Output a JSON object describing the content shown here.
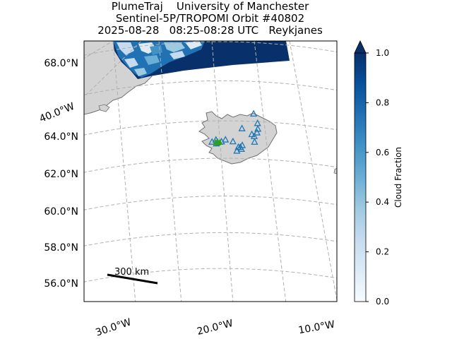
{
  "title_lines": [
    "PlumeTraj    University of Manchester",
    "Sentinel-5P/TROPOMI Orbit #40802",
    "2025-08-28   08:25-08:28 UTC   Reykjanes"
  ],
  "chart_data": {
    "type": "map",
    "projection": "stereographic",
    "lat_ticks": [
      "68.0°N",
      "64.0°N",
      "62.0°N",
      "60.0°N",
      "58.0°N",
      "56.0°N"
    ],
    "lon_ticks_bottom": [
      "30.0°W",
      "20.0°W",
      "10.0°W"
    ],
    "lon_tick_left": "40.0°W",
    "scale_bar": {
      "label": "300 km",
      "length_km": 300
    },
    "colorbar": {
      "label": "Cloud Fraction",
      "range": [
        0.0,
        1.0
      ],
      "ticks": [
        "0.0",
        "0.2",
        "0.4",
        "0.6",
        "0.8",
        "1.0"
      ],
      "extend": "max",
      "colormap": "Blues"
    },
    "markers": {
      "volcano_triangles": {
        "color": "#1f77b4",
        "shape": "open triangle",
        "locations": [
          {
            "lat": 65.4,
            "lon": -17.0
          },
          {
            "lat": 64.3,
            "lon": -17.1
          },
          {
            "lat": 64.2,
            "lon": -16.7
          },
          {
            "lat": 64.4,
            "lon": -16.3
          },
          {
            "lat": 64.6,
            "lon": -16.2
          },
          {
            "lat": 64.9,
            "lon": -16.3
          },
          {
            "lat": 63.9,
            "lon": -16.6
          },
          {
            "lat": 63.6,
            "lon": -19.1
          },
          {
            "lat": 63.6,
            "lon": -18.8
          },
          {
            "lat": 63.7,
            "lon": -18.5
          },
          {
            "lat": 63.4,
            "lon": -19.3
          },
          {
            "lat": 63.5,
            "lon": -18.6
          },
          {
            "lat": 64.0,
            "lon": -21.2
          },
          {
            "lat": 64.0,
            "lon": -22.7
          },
          {
            "lat": 63.9,
            "lon": -20.0
          },
          {
            "lat": 63.9,
            "lon": -21.8
          },
          {
            "lat": 63.9,
            "lon": -23.3
          },
          {
            "lat": 63.8,
            "lon": -22.6
          },
          {
            "lat": 64.6,
            "lon": -18.7
          }
        ]
      },
      "source_vent": {
        "color": "#2ca02c",
        "label": "Reykjanes",
        "lat": 63.9,
        "lon": -22.4
      }
    }
  },
  "colors": {
    "land": "#d3d3d3",
    "coast": "#707070",
    "grid": "#b0b0b0",
    "cloud_dark": "#08306b",
    "cloud_mid": "#2171b5",
    "cloud_light": "#c6dbef",
    "triangle": "#1f77b4",
    "vent": "#2ca02c"
  }
}
